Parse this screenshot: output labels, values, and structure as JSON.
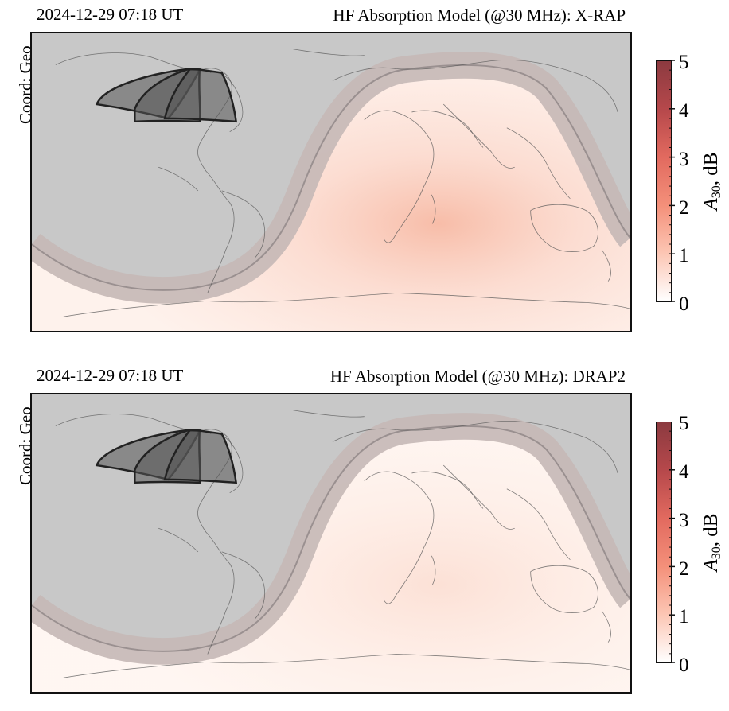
{
  "panels": [
    {
      "timestamp": "2024-12-29 07:18 UT",
      "title": "HF Absorption Model (@30 MHz):  X-RAP",
      "coord_label": "Coord: Geo",
      "intensity": 1.0
    },
    {
      "timestamp": "2024-12-29 07:18 UT",
      "title": "HF Absorption Model (@30 MHz):  DRAP2",
      "coord_label": "Coord: Geo",
      "intensity": 0.45
    }
  ],
  "colorbar": {
    "ticks": [
      "0",
      "1",
      "2",
      "3",
      "4",
      "5"
    ],
    "label_var": "A",
    "label_sub": "30",
    "label_unit": ", dB",
    "range": [
      0,
      5
    ],
    "colors": [
      "#ffffff",
      "#fcc6b4",
      "#f4907a",
      "#e26a5f",
      "#b6484b",
      "#8c3a40"
    ]
  },
  "map": {
    "night_color": "#c8c8c8",
    "terminator_color": "#c5b8b6",
    "coast_color": "#555555"
  }
}
